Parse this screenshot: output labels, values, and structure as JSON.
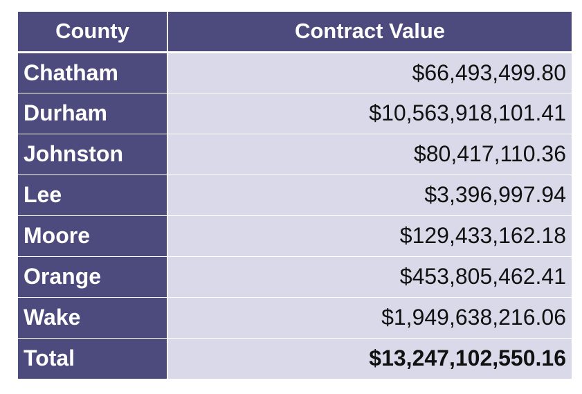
{
  "table": {
    "headers": [
      "County",
      "Contract Value"
    ],
    "rows": [
      {
        "county": "Chatham",
        "value": "$66,493,499.80"
      },
      {
        "county": "Durham",
        "value": "$10,563,918,101.41"
      },
      {
        "county": "Johnston",
        "value": "$80,417,110.36"
      },
      {
        "county": "Lee",
        "value": "$3,396,997.94"
      },
      {
        "county": "Moore",
        "value": "$129,433,162.18"
      },
      {
        "county": "Orange",
        "value": "$453,805,462.41"
      },
      {
        "county": "Wake",
        "value": "$1,949,638,216.06"
      }
    ],
    "total": {
      "label": "Total",
      "value": "$13,247,102,550.16"
    }
  },
  "colors": {
    "header_bg": "#4d4b7d",
    "value_bg": "#dad9ea",
    "header_text": "#ffffff"
  }
}
